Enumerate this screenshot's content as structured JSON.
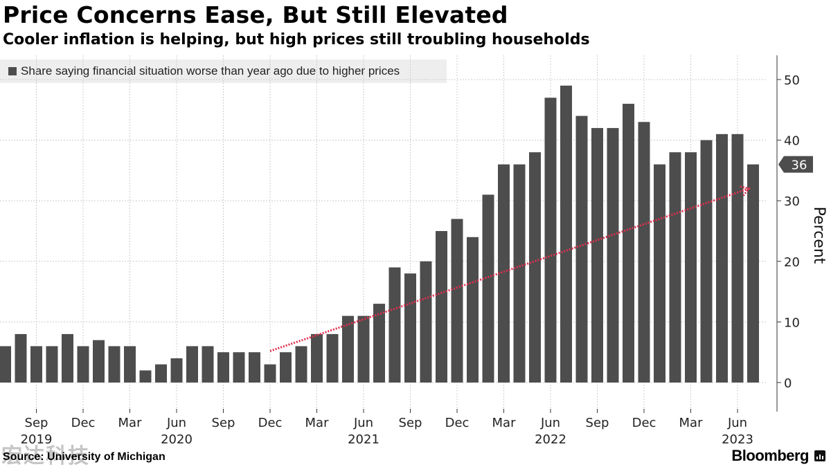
{
  "header": {
    "title": "Price Concerns Ease, But Still Elevated",
    "subtitle": "Cooler inflation is helping, but high prices still troubling households"
  },
  "legend": {
    "label": "Share saying financial situation worse than year ago due to higher prices"
  },
  "footer": {
    "source": "Source: University of Michigan",
    "brand": "Bloomberg",
    "watermark": "宏达科技"
  },
  "colors": {
    "bar": "#4d4d4d",
    "trend_arrow": "#e0304e",
    "grid": "#cccccc",
    "callout_bg": "#4d4d4d"
  },
  "chart_data": {
    "type": "bar",
    "series": [
      {
        "name": "Share saying financial situation worse than year ago due to higher prices",
        "values": [
          6,
          8,
          6,
          6,
          8,
          6,
          7,
          6,
          6,
          2,
          3,
          4,
          6,
          6,
          5,
          5,
          5,
          3,
          5,
          6,
          8,
          8,
          11,
          11,
          13,
          19,
          18,
          20,
          25,
          27,
          24,
          31,
          36,
          36,
          38,
          47,
          49,
          44,
          42,
          42,
          46,
          43,
          36,
          38,
          38,
          40,
          41,
          41,
          36
        ]
      }
    ],
    "x": [
      "2019-07",
      "2019-08",
      "2019-09",
      "2019-10",
      "2019-11",
      "2019-12",
      "2020-01",
      "2020-02",
      "2020-03",
      "2020-04",
      "2020-05",
      "2020-06",
      "2020-07",
      "2020-08",
      "2020-09",
      "2020-10",
      "2020-11",
      "2020-12",
      "2021-01",
      "2021-02",
      "2021-03",
      "2021-04",
      "2021-05",
      "2021-06",
      "2021-07",
      "2021-08",
      "2021-09",
      "2021-10",
      "2021-11",
      "2021-12",
      "2022-01",
      "2022-02",
      "2022-03",
      "2022-04",
      "2022-05",
      "2022-06",
      "2022-07",
      "2022-08",
      "2022-09",
      "2022-10",
      "2022-11",
      "2022-12",
      "2023-01",
      "2023-02",
      "2023-03",
      "2023-04",
      "2023-05",
      "2023-06",
      "2023-07"
    ],
    "x_tick_labels": [
      {
        "month": "Sep",
        "year": "2019",
        "date": "2019-09"
      },
      {
        "month": "Dec",
        "year": "",
        "date": "2019-12"
      },
      {
        "month": "Mar",
        "year": "",
        "date": "2020-03"
      },
      {
        "month": "Jun",
        "year": "2020",
        "date": "2020-06"
      },
      {
        "month": "Sep",
        "year": "",
        "date": "2020-09"
      },
      {
        "month": "Dec",
        "year": "",
        "date": "2020-12"
      },
      {
        "month": "Mar",
        "year": "",
        "date": "2021-03"
      },
      {
        "month": "Jun",
        "year": "2021",
        "date": "2021-06"
      },
      {
        "month": "Sep",
        "year": "",
        "date": "2021-09"
      },
      {
        "month": "Dec",
        "year": "",
        "date": "2021-12"
      },
      {
        "month": "Mar",
        "year": "",
        "date": "2022-03"
      },
      {
        "month": "Jun",
        "year": "2022",
        "date": "2022-06"
      },
      {
        "month": "Sep",
        "year": "",
        "date": "2022-09"
      },
      {
        "month": "Dec",
        "year": "",
        "date": "2022-12"
      },
      {
        "month": "Mar",
        "year": "",
        "date": "2023-03"
      },
      {
        "month": "Jun",
        "year": "2023",
        "date": "2023-06"
      }
    ],
    "y_ticks": [
      0,
      10,
      20,
      30,
      40,
      50
    ],
    "ylim": [
      -5,
      55
    ],
    "ylabel": "Percent",
    "y_axis_side": "right",
    "grid": true,
    "legend_position": "top-left",
    "last_value_label": "36",
    "trend_arrow": {
      "from": {
        "x": "2020-12",
        "y": 5.2
      },
      "to": {
        "x": "2023-07",
        "y": 32
      }
    }
  }
}
